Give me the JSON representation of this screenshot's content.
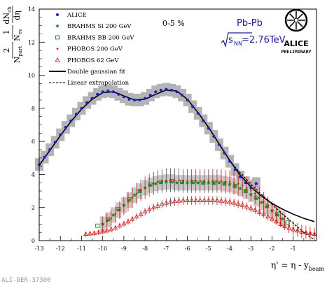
{
  "chart_data": {
    "type": "scatter",
    "xlabel_main": "η' = η - y",
    "xlabel_sub": "beam",
    "ylabel": "2/N_part · 1/N_ev · dN_ch/dη",
    "ylabel_parts": {
      "num1": "2",
      "den1": "N",
      "den1_sub": "part",
      "num2": "1",
      "den2": "N",
      "den2_sub": "ev",
      "num3": "dN",
      "num3_sub": "ch",
      "den3": "dη"
    },
    "xlim": [
      -13,
      0.1
    ],
    "ylim": [
      0,
      14
    ],
    "x_ticks": [
      "-13",
      "-12",
      "-11",
      "-10",
      "-9",
      "-8",
      "-7",
      "-6",
      "-5",
      "-4",
      "-3",
      "-2",
      "-1"
    ],
    "y_ticks": [
      "0",
      "2",
      "4",
      "6",
      "8",
      "10",
      "12",
      "14"
    ],
    "centrality_label": "0-5 %",
    "system_label": "Pb-Pb",
    "energy_label": "=2.76TeV",
    "energy_sqrt_sub": "NN",
    "energy_sqrt_s": "s",
    "logo_text": "ALICE",
    "logo_subtext": "PRELIMINARY",
    "footer_id": "ALI-DER-37300",
    "legend": [
      {
        "label": "ALICE",
        "marker": "dot",
        "color": "#1a1adb"
      },
      {
        "label": "BRAHMS Si 200 GeV",
        "marker": "star",
        "color": "#1e8c1e"
      },
      {
        "label": "BRAHMS BB 200 GeV",
        "marker": "square-open",
        "color": "#1e8c1e"
      },
      {
        "label": "PHOBOS 200 GeV",
        "marker": "star-small",
        "color": "#d21414"
      },
      {
        "label": "PHOBOS 62 GeV",
        "marker": "triangle-open",
        "color": "#d21414"
      },
      {
        "label": "Double gaussian fit",
        "marker": "line-solid",
        "color": "#000000"
      },
      {
        "label": "Linear extrapolation",
        "marker": "line-dashed",
        "color": "#000000"
      }
    ],
    "series": [
      {
        "name": "ALICE",
        "color": "#1a1adb",
        "error_band_color": "#b4b4b4",
        "x": [
          -13.0,
          -12.75,
          -12.5,
          -12.25,
          -12.0,
          -11.75,
          -11.5,
          -11.25,
          -11.0,
          -10.75,
          -10.5,
          -10.25,
          -10.0,
          -9.75,
          -9.5,
          -9.25,
          -9.0,
          -8.75,
          -8.5,
          -8.25,
          -8.0,
          -7.75,
          -7.5,
          -7.25,
          -7.0,
          -6.75,
          -6.5,
          -6.25,
          -6.0,
          -5.75,
          -5.5,
          -5.25,
          -5.0,
          -4.75,
          -4.5,
          -4.25,
          -4.0,
          -3.75,
          -3.5,
          -3.25,
          -3.0,
          -2.75
        ],
        "y": [
          4.6,
          5.05,
          5.5,
          5.95,
          6.4,
          6.85,
          7.25,
          7.65,
          8.0,
          8.35,
          8.6,
          8.85,
          9.0,
          9.05,
          9.0,
          8.85,
          8.7,
          8.55,
          8.5,
          8.5,
          8.6,
          8.8,
          9.0,
          9.1,
          9.15,
          9.1,
          9.0,
          8.8,
          8.5,
          8.1,
          7.7,
          7.25,
          6.8,
          6.3,
          5.8,
          5.3,
          4.8,
          4.3,
          3.85,
          3.5,
          3.2,
          3.45
        ]
      },
      {
        "name": "BRAHMS Si 200 GeV",
        "color": "#1e8c1e",
        "x": [
          -10.0,
          -9.75,
          -9.5,
          -9.25,
          -9.0,
          -8.75,
          -8.5,
          -8.25,
          -8.0,
          -7.75,
          -7.5,
          -7.25,
          -7.0,
          -6.75,
          -6.5,
          -6.25,
          -6.0,
          -5.75,
          -5.5,
          -5.25,
          -5.0,
          -4.75,
          -4.5,
          -4.25,
          -4.0,
          -3.75,
          -3.5,
          -3.25,
          -3.0,
          -2.75,
          -2.5,
          -2.25,
          -2.0,
          -1.75,
          -1.5
        ],
        "y": [
          1.0,
          1.25,
          1.55,
          1.85,
          2.15,
          2.45,
          2.75,
          3.0,
          3.2,
          3.35,
          3.45,
          3.5,
          3.55,
          3.55,
          3.5,
          3.5,
          3.5,
          3.5,
          3.5,
          3.5,
          3.5,
          3.5,
          3.5,
          3.45,
          3.4,
          3.3,
          3.15,
          3.0,
          2.8,
          2.55,
          2.3,
          2.05,
          1.8,
          1.55,
          1.3
        ]
      },
      {
        "name": "BRAHMS BB 200 GeV",
        "color": "#1e8c1e",
        "x": [
          -10.25,
          -9.75,
          -9.25,
          -8.75,
          -8.25,
          -7.75,
          -7.25,
          -6.75,
          -6.25,
          -5.75,
          -5.25,
          -4.75,
          -4.25,
          -3.75,
          -3.25,
          -2.75,
          -2.25,
          -1.75,
          -1.25
        ],
        "y": [
          0.9,
          1.3,
          1.9,
          2.5,
          3.0,
          3.4,
          3.55,
          3.6,
          3.55,
          3.55,
          3.5,
          3.5,
          3.45,
          3.3,
          3.0,
          2.6,
          2.1,
          1.6,
          1.1
        ]
      },
      {
        "name": "PHOBOS 200 GeV",
        "color": "#d21414",
        "x": [
          -10.0,
          -9.8,
          -9.6,
          -9.4,
          -9.2,
          -9.0,
          -8.8,
          -8.6,
          -8.4,
          -8.2,
          -8.0,
          -7.8,
          -7.6,
          -7.4,
          -7.2,
          -7.0,
          -6.8,
          -6.6,
          -6.4,
          -6.2,
          -6.0,
          -5.8,
          -5.6,
          -5.4,
          -5.2,
          -5.0,
          -4.8,
          -4.6,
          -4.4,
          -4.2,
          -4.0,
          -3.8,
          -3.6,
          -3.4,
          -3.2,
          -3.0,
          -2.8,
          -2.6,
          -2.4,
          -2.2,
          -2.0,
          -1.8,
          -1.6,
          -1.4,
          -1.2,
          -1.0,
          -0.8,
          -0.6,
          -0.4,
          -0.2,
          0.0
        ],
        "y": [
          1.0,
          1.15,
          1.35,
          1.6,
          1.85,
          2.1,
          2.35,
          2.6,
          2.85,
          3.05,
          3.2,
          3.35,
          3.45,
          3.55,
          3.6,
          3.65,
          3.65,
          3.65,
          3.65,
          3.6,
          3.6,
          3.6,
          3.6,
          3.6,
          3.6,
          3.6,
          3.6,
          3.6,
          3.6,
          3.55,
          3.55,
          3.5,
          3.45,
          3.35,
          3.2,
          3.05,
          2.85,
          2.6,
          2.35,
          2.1,
          1.85,
          1.6,
          1.35,
          1.1,
          0.9,
          0.75,
          0.65,
          0.55,
          0.5,
          0.45,
          0.4
        ]
      },
      {
        "name": "PHOBOS 62 GeV",
        "color": "#d21414",
        "x": [
          -10.8,
          -10.6,
          -10.4,
          -10.2,
          -10.0,
          -9.8,
          -9.6,
          -9.4,
          -9.2,
          -9.0,
          -8.8,
          -8.6,
          -8.4,
          -8.2,
          -8.0,
          -7.8,
          -7.6,
          -7.4,
          -7.2,
          -7.0,
          -6.8,
          -6.6,
          -6.4,
          -6.2,
          -6.0,
          -5.8,
          -5.6,
          -5.4,
          -5.2,
          -5.0,
          -4.8,
          -4.6,
          -4.4,
          -4.2,
          -4.0,
          -3.8,
          -3.6,
          -3.4,
          -3.2,
          -3.0,
          -2.8,
          -2.6,
          -2.4,
          -2.2,
          -2.0,
          -1.8,
          -1.6,
          -1.4,
          -1.2,
          -1.0,
          -0.8,
          -0.6,
          -0.4,
          -0.2,
          0.0
        ],
        "y": [
          0.4,
          0.42,
          0.45,
          0.5,
          0.55,
          0.6,
          0.68,
          0.78,
          0.9,
          1.02,
          1.15,
          1.3,
          1.45,
          1.6,
          1.75,
          1.88,
          2.0,
          2.1,
          2.2,
          2.28,
          2.33,
          2.38,
          2.4,
          2.42,
          2.43,
          2.43,
          2.43,
          2.43,
          2.43,
          2.43,
          2.43,
          2.42,
          2.4,
          2.37,
          2.33,
          2.28,
          2.22,
          2.15,
          2.05,
          1.95,
          1.85,
          1.72,
          1.6,
          1.45,
          1.3,
          1.15,
          1.0,
          0.88,
          0.77,
          0.67,
          0.6,
          0.53,
          0.48,
          0.44,
          0.4
        ]
      }
    ],
    "fit_line": {
      "name": "Double gaussian fit",
      "x": [
        -13.0,
        -12.5,
        -12.0,
        -11.5,
        -11.0,
        -10.5,
        -10.0,
        -9.5,
        -9.0,
        -8.5,
        -8.0,
        -7.5,
        -7.0,
        -6.5,
        -6.0,
        -5.5,
        -5.0,
        -4.5,
        -4.0,
        -3.5,
        -3.0,
        -2.5,
        -2.0,
        -1.5,
        -1.0,
        -0.5,
        0.0
      ],
      "y": [
        4.55,
        5.45,
        6.35,
        7.2,
        7.95,
        8.55,
        8.95,
        9.0,
        8.75,
        8.5,
        8.55,
        8.85,
        9.1,
        9.05,
        8.55,
        7.75,
        6.85,
        5.85,
        4.85,
        3.95,
        3.25,
        2.7,
        2.25,
        1.9,
        1.6,
        1.35,
        1.15
      ]
    },
    "extrap_line": {
      "name": "Linear extrapolation",
      "x": [
        -4.0,
        -3.5,
        -3.0,
        -2.5,
        -2.0,
        -1.5,
        -1.0,
        -0.5,
        0.0
      ],
      "y": [
        4.8,
        4.1,
        3.4,
        2.8,
        2.2,
        1.6,
        1.05,
        0.5,
        0.05
      ]
    }
  }
}
